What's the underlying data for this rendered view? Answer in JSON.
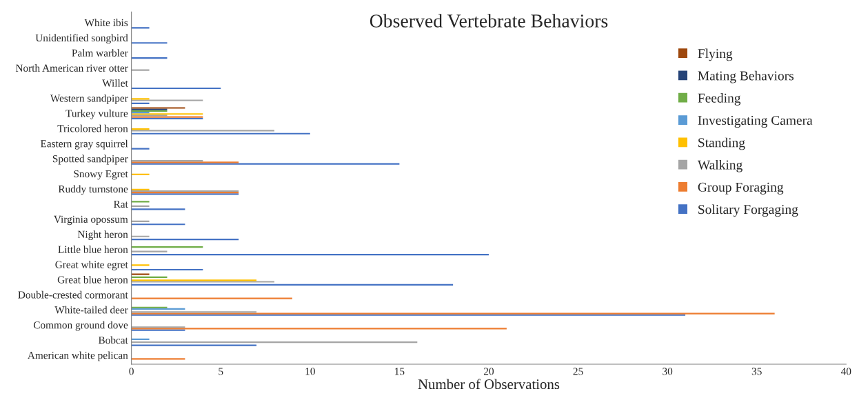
{
  "chart_data": {
    "type": "bar",
    "orientation": "horizontal",
    "title": "Observed Vertebrate Behaviors",
    "xlabel": "Number of Observations",
    "categories": [
      "White ibis",
      "Unidentified songbird",
      "Palm warbler",
      "North American river otter",
      "Willet",
      "Western sandpiper",
      "Turkey vulture",
      "Tricolored heron",
      "Eastern gray squirrel",
      "Spotted sandpiper",
      "Snowy Egret",
      "Ruddy turnstone",
      "Rat",
      "Virginia opossum",
      "Night heron",
      "Little blue heron",
      "Great white egret",
      "Great blue heron",
      "Double-crested cormorant",
      "White-tailed deer",
      "Common ground dove",
      "Bobcat",
      "American white pelican"
    ],
    "series": [
      {
        "name": "Solitary Forgaging",
        "color": "#4472c4",
        "values": [
          1,
          2,
          2,
          null,
          5,
          1,
          4,
          10,
          1,
          15,
          null,
          6,
          3,
          3,
          6,
          20,
          4,
          18,
          null,
          31,
          3,
          7,
          null
        ]
      },
      {
        "name": "Group Foraging",
        "color": "#ed7d31",
        "values": [
          null,
          null,
          null,
          null,
          null,
          null,
          4,
          null,
          null,
          6,
          null,
          6,
          null,
          null,
          null,
          null,
          null,
          null,
          9,
          36,
          21,
          null,
          3
        ]
      },
      {
        "name": "Walking",
        "color": "#a5a5a5",
        "values": [
          null,
          null,
          null,
          1,
          null,
          4,
          2,
          8,
          null,
          4,
          null,
          6,
          1,
          1,
          1,
          2,
          null,
          8,
          null,
          7,
          3,
          16,
          null
        ]
      },
      {
        "name": "Standing",
        "color": "#ffc000",
        "values": [
          null,
          null,
          null,
          null,
          null,
          1,
          4,
          1,
          null,
          null,
          1,
          1,
          null,
          null,
          null,
          null,
          1,
          7,
          null,
          null,
          null,
          null,
          null
        ]
      },
      {
        "name": "Investigating Camera",
        "color": "#5b9bd5",
        "values": [
          null,
          null,
          null,
          null,
          null,
          null,
          1,
          null,
          null,
          null,
          null,
          null,
          null,
          null,
          null,
          null,
          null,
          null,
          null,
          3,
          null,
          1,
          null
        ]
      },
      {
        "name": "Feeding",
        "color": "#70ad47",
        "values": [
          null,
          null,
          null,
          null,
          null,
          null,
          2,
          null,
          null,
          null,
          null,
          null,
          1,
          null,
          null,
          4,
          null,
          2,
          null,
          2,
          null,
          null,
          null
        ]
      },
      {
        "name": "Mating Behaviors",
        "color": "#264478",
        "values": [
          null,
          null,
          null,
          null,
          null,
          null,
          2,
          null,
          null,
          null,
          null,
          null,
          null,
          null,
          null,
          null,
          null,
          null,
          null,
          null,
          null,
          null,
          null
        ]
      },
      {
        "name": "Flying",
        "color": "#9e480e",
        "values": [
          null,
          null,
          null,
          null,
          null,
          null,
          3,
          null,
          null,
          null,
          null,
          null,
          null,
          null,
          null,
          null,
          null,
          1,
          null,
          null,
          null,
          null,
          null
        ]
      }
    ],
    "xlim": [
      0,
      40
    ],
    "xticks": [
      0,
      5,
      10,
      15,
      20,
      25,
      30,
      35,
      40
    ],
    "grid": false,
    "legend": "top right"
  }
}
